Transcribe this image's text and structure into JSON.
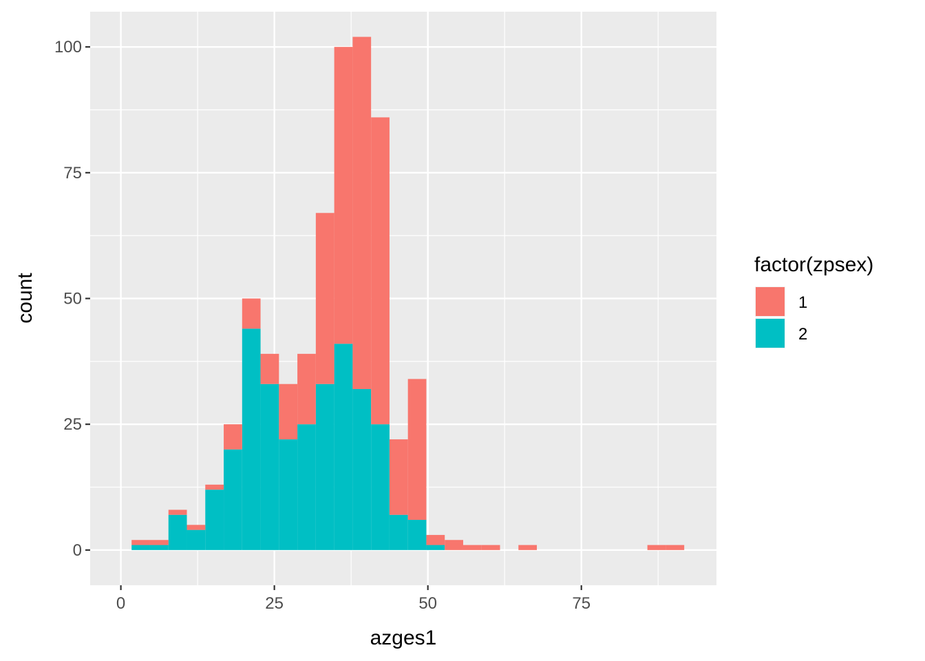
{
  "chart_data": {
    "type": "bar",
    "stacked": true,
    "xlabel": "azges1",
    "ylabel": "count",
    "xlim": [
      -5,
      97
    ],
    "ylim": [
      -7,
      107
    ],
    "x_ticks": [
      0,
      25,
      50,
      75
    ],
    "x_tick_labels": [
      "0",
      "25",
      "50",
      "75"
    ],
    "y_ticks": [
      0,
      25,
      50,
      75,
      100
    ],
    "y_tick_labels": [
      "0",
      "25",
      "50",
      "75",
      "100"
    ],
    "x_minor_ticks": [
      12.5,
      37.5,
      62.5,
      87.5
    ],
    "y_minor_ticks": [
      12.5,
      37.5,
      62.5,
      87.5
    ],
    "grid": true,
    "legend_position": "right",
    "bin_width": 3,
    "bin_starts": [
      1.75,
      4.75,
      7.75,
      10.75,
      13.75,
      16.75,
      19.75,
      22.75,
      25.75,
      28.75,
      31.75,
      34.75,
      37.75,
      40.75,
      43.75,
      46.75,
      49.75,
      52.75,
      55.75,
      58.75,
      61.75,
      64.75,
      67.75,
      70.75,
      73.75,
      76.75,
      79.75,
      82.75,
      85.75,
      88.75
    ],
    "series": [
      {
        "name": "2",
        "color": "#00BFC4",
        "values": [
          1,
          1,
          7,
          4,
          12,
          20,
          44,
          33,
          22,
          25,
          33,
          41,
          32,
          25,
          7,
          6,
          1,
          0,
          0,
          0,
          0,
          0,
          0,
          0,
          0,
          0,
          0,
          0,
          0,
          0
        ]
      },
      {
        "name": "1",
        "color": "#F8766D",
        "values": [
          1,
          1,
          1,
          1,
          1,
          5,
          6,
          6,
          11,
          14,
          34,
          59,
          70,
          61,
          15,
          28,
          2,
          2,
          1,
          1,
          0,
          1,
          0,
          0,
          0,
          0,
          0,
          0,
          1,
          1
        ]
      }
    ],
    "legend": {
      "title": "factor(zpsex)",
      "items": [
        {
          "label": "1",
          "color": "#F8766D"
        },
        {
          "label": "2",
          "color": "#00BFC4"
        }
      ]
    },
    "panel_color": "#EBEBEB",
    "grid_color": "#FFFFFF"
  }
}
